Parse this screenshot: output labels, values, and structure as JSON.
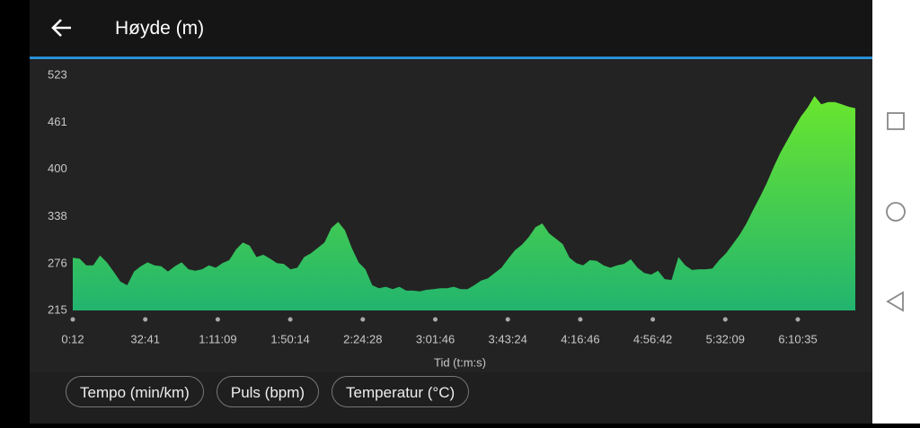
{
  "header": {
    "title": "Høyde (m)"
  },
  "chart_data": {
    "type": "area",
    "x_label": "Tid (t:m:s)",
    "xticks": [
      "0:12",
      "32:41",
      "1:11:09",
      "1:50:14",
      "2:24:28",
      "3:01:46",
      "3:43:24",
      "4:16:46",
      "4:56:42",
      "5:32:09",
      "6:10:35"
    ],
    "values": [
      284,
      283,
      274,
      274,
      287,
      278,
      266,
      253,
      248,
      266,
      273,
      278,
      274,
      273,
      266,
      273,
      278,
      269,
      267,
      269,
      274,
      271,
      277,
      281,
      295,
      304,
      300,
      285,
      288,
      283,
      277,
      276,
      269,
      271,
      285,
      290,
      297,
      304,
      323,
      331,
      320,
      297,
      278,
      269,
      248,
      244,
      246,
      243,
      246,
      241,
      241,
      240,
      242,
      243,
      244,
      244,
      246,
      243,
      243,
      248,
      254,
      257,
      264,
      271,
      283,
      294,
      301,
      311,
      324,
      329,
      316,
      309,
      302,
      284,
      277,
      274,
      281,
      280,
      274,
      271,
      274,
      276,
      282,
      271,
      264,
      262,
      267,
      256,
      255,
      285,
      274,
      268,
      269,
      269,
      270,
      281,
      290,
      302,
      314,
      329,
      347,
      364,
      382,
      403,
      422,
      438,
      454,
      469,
      481,
      496,
      485,
      488,
      488,
      485,
      482,
      480
    ],
    "ylim": [
      215,
      523
    ],
    "yticks": [
      215,
      276,
      338,
      400,
      461,
      523
    ],
    "color_top": "#6ae62e",
    "color_bottom": "#22b46f"
  },
  "buttons": [
    "Tempo (min/km)",
    "Puls (bpm)",
    "Temperatur (°C)"
  ]
}
